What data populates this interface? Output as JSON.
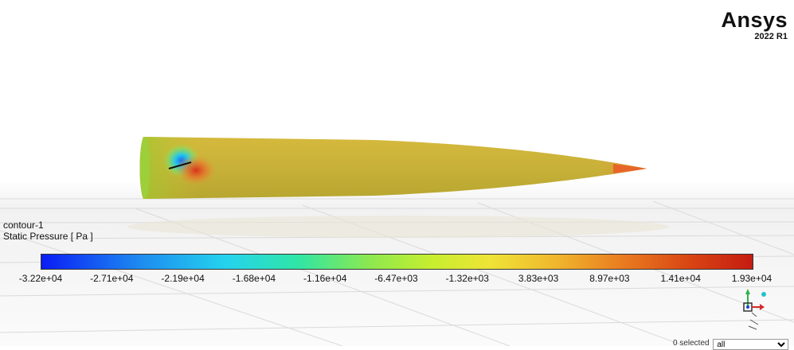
{
  "brand": {
    "name": "Ansys",
    "version": "2022 R1"
  },
  "legend": {
    "contour_name": "contour-1",
    "variable": "Static Pressure [ Pa ]",
    "ticks": [
      "-3.22e+04",
      "-2.71e+04",
      "-2.19e+04",
      "-1.68e+04",
      "-1.16e+04",
      "-6.47e+03",
      "-1.32e+03",
      "3.83e+03",
      "8.97e+03",
      "1.41e+04",
      "1.93e+04"
    ]
  },
  "selection": {
    "status": "0 selected",
    "filter_value": "all"
  },
  "colors": {
    "accent_low": "#0a1df5",
    "accent_high": "#c51b12",
    "body_base": "#cbb53a"
  }
}
